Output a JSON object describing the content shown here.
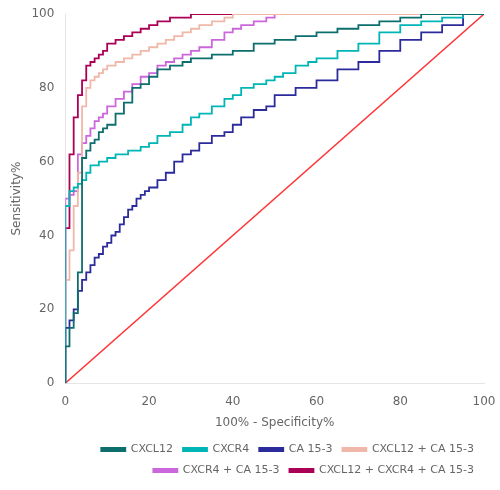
{
  "chart_data": {
    "type": "line",
    "xlabel": "100% - Specificity%",
    "ylabel": "Sensitivity%",
    "xlim": [
      0,
      100
    ],
    "ylim": [
      0,
      100
    ],
    "xticks": [
      0,
      20,
      40,
      60,
      80,
      100
    ],
    "yticks": [
      0,
      20,
      40,
      60,
      80,
      100
    ],
    "grid": false,
    "legend": "lower right",
    "series": [
      {
        "color": "#FF3333",
        "x": [
          0,
          100
        ],
        "values": [
          0,
          100
        ]
      },
      {
        "name": "CXCL12",
        "color": "#0D6E6E",
        "line_style": "steps-post",
        "x": [
          0,
          0,
          1,
          1,
          2,
          2,
          3,
          3,
          4,
          4,
          5,
          5,
          6,
          6,
          7,
          7,
          8,
          8,
          9,
          9,
          10,
          10,
          12,
          12,
          14,
          14,
          16,
          16,
          18,
          18,
          20,
          20,
          22,
          22,
          25,
          25,
          28,
          28,
          30,
          30,
          35,
          35,
          40,
          40,
          45,
          45,
          50,
          50,
          55,
          55,
          60,
          60,
          65,
          65,
          70,
          70,
          75,
          75,
          80,
          80,
          85,
          85,
          90,
          90,
          95,
          95,
          100
        ],
        "values": [
          0,
          10,
          10,
          15,
          15,
          19,
          19,
          30,
          30,
          61,
          61,
          63,
          63,
          65,
          65,
          66,
          66,
          68,
          68,
          69,
          69,
          70,
          70,
          73,
          73,
          76,
          76,
          80,
          80,
          81,
          81,
          83,
          83,
          85,
          85,
          86,
          86,
          87,
          87,
          88,
          88,
          89,
          89,
          90,
          90,
          92,
          92,
          93,
          93,
          94,
          94,
          95,
          95,
          96,
          96,
          97,
          97,
          98,
          98,
          99,
          99,
          100,
          100,
          100,
          100,
          100,
          100
        ]
      },
      {
        "name": "CXCR4",
        "color": "#00B5B5",
        "line_style": "steps-post",
        "x": [
          0,
          0,
          1,
          1,
          2,
          2,
          3,
          3,
          4,
          4,
          5,
          5,
          6,
          6,
          8,
          8,
          10,
          10,
          12,
          12,
          15,
          15,
          18,
          18,
          20,
          20,
          22,
          22,
          25,
          25,
          28,
          28,
          30,
          30,
          32,
          32,
          35,
          35,
          38,
          38,
          40,
          40,
          42,
          42,
          45,
          45,
          48,
          48,
          50,
          50,
          52,
          52,
          55,
          55,
          58,
          58,
          60,
          60,
          65,
          65,
          70,
          70,
          75,
          75,
          80,
          80,
          85,
          85,
          90,
          90,
          95,
          95,
          100
        ],
        "values": [
          0,
          48,
          48,
          52,
          52,
          53,
          53,
          54,
          54,
          55,
          55,
          57,
          57,
          59,
          59,
          60,
          60,
          61,
          61,
          62,
          62,
          63,
          63,
          64,
          64,
          65,
          65,
          67,
          67,
          68,
          68,
          70,
          70,
          72,
          72,
          73,
          73,
          75,
          75,
          77,
          77,
          78,
          78,
          80,
          80,
          81,
          81,
          82,
          82,
          83,
          83,
          84,
          84,
          86,
          86,
          87,
          87,
          88,
          88,
          90,
          90,
          92,
          92,
          95,
          95,
          97,
          97,
          98,
          98,
          99,
          99,
          100,
          100
        ]
      },
      {
        "name": "CA 15-3",
        "color": "#2B2B9B",
        "line_style": "steps-post",
        "x": [
          0,
          0,
          1,
          1,
          2,
          2,
          3,
          3,
          4,
          4,
          5,
          5,
          6,
          6,
          7,
          7,
          8,
          8,
          9,
          9,
          10,
          10,
          11,
          11,
          12,
          12,
          13,
          13,
          14,
          14,
          15,
          15,
          16,
          16,
          17,
          17,
          18,
          18,
          19,
          19,
          20,
          20,
          22,
          22,
          24,
          24,
          26,
          26,
          28,
          28,
          30,
          30,
          32,
          32,
          35,
          35,
          38,
          38,
          40,
          40,
          42,
          42,
          45,
          45,
          48,
          48,
          50,
          50,
          55,
          55,
          60,
          60,
          65,
          65,
          70,
          70,
          75,
          75,
          80,
          80,
          85,
          85,
          90,
          90,
          95,
          95,
          100
        ],
        "values": [
          0,
          15,
          15,
          17,
          17,
          20,
          20,
          25,
          25,
          28,
          28,
          30,
          30,
          32,
          32,
          34,
          34,
          35,
          35,
          37,
          37,
          38,
          38,
          40,
          40,
          41,
          41,
          43,
          43,
          45,
          45,
          47,
          47,
          48,
          48,
          50,
          50,
          51,
          51,
          52,
          52,
          53,
          53,
          55,
          55,
          57,
          57,
          60,
          60,
          62,
          62,
          63,
          63,
          65,
          65,
          67,
          67,
          68,
          68,
          70,
          70,
          72,
          72,
          74,
          74,
          75,
          75,
          78,
          78,
          80,
          80,
          82,
          82,
          85,
          85,
          87,
          87,
          90,
          90,
          93,
          93,
          95,
          95,
          97,
          97,
          100,
          100
        ]
      },
      {
        "name": "CXCL12 + CA 15-3",
        "color": "#F0B8A8",
        "line_style": "steps-post",
        "x": [
          0,
          0,
          1,
          1,
          2,
          2,
          3,
          3,
          4,
          4,
          5,
          5,
          6,
          6,
          7,
          7,
          8,
          8,
          9,
          9,
          10,
          10,
          12,
          12,
          14,
          14,
          16,
          16,
          18,
          18,
          20,
          20,
          22,
          22,
          24,
          24,
          26,
          26,
          28,
          28,
          30,
          30,
          32,
          32,
          35,
          35,
          38,
          38,
          40,
          40,
          45,
          45,
          50,
          50,
          55,
          55,
          60,
          60,
          65,
          65,
          70,
          70,
          75,
          75,
          80,
          80,
          85,
          85,
          90,
          90,
          95,
          95,
          100
        ],
        "values": [
          0,
          28,
          28,
          36,
          36,
          48,
          48,
          57,
          57,
          75,
          75,
          80,
          80,
          82,
          82,
          83,
          83,
          84,
          84,
          85,
          85,
          86,
          86,
          87,
          87,
          88,
          88,
          89,
          89,
          90,
          90,
          91,
          91,
          92,
          92,
          93,
          93,
          94,
          94,
          95,
          95,
          96,
          96,
          97,
          97,
          98,
          98,
          99,
          99,
          100,
          100,
          100,
          100,
          100,
          100,
          100,
          100,
          100,
          100,
          100,
          100,
          100,
          100,
          100,
          100,
          100,
          100,
          100,
          100,
          100,
          100,
          100,
          100
        ]
      },
      {
        "name": "CXCR4 + CA 15-3",
        "color": "#CC66DD",
        "line_style": "steps-post",
        "x": [
          0,
          0,
          1,
          1,
          2,
          2,
          3,
          3,
          4,
          4,
          5,
          5,
          6,
          6,
          7,
          7,
          8,
          8,
          9,
          9,
          10,
          10,
          12,
          12,
          14,
          14,
          16,
          16,
          18,
          18,
          20,
          20,
          22,
          22,
          24,
          24,
          26,
          26,
          28,
          28,
          30,
          30,
          32,
          32,
          35,
          35,
          38,
          38,
          40,
          40,
          42,
          42,
          45,
          45,
          48,
          48,
          50,
          50,
          55,
          55,
          60,
          60,
          65,
          65,
          70,
          70,
          75,
          75,
          80,
          80,
          85,
          85,
          90,
          90,
          95,
          95,
          100
        ],
        "values": [
          0,
          50,
          50,
          51,
          51,
          52,
          52,
          62,
          62,
          65,
          65,
          67,
          67,
          69,
          69,
          71,
          71,
          72,
          72,
          73,
          73,
          75,
          75,
          77,
          77,
          79,
          79,
          81,
          81,
          83,
          83,
          84,
          84,
          86,
          86,
          87,
          87,
          88,
          88,
          89,
          89,
          90,
          90,
          91,
          91,
          93,
          93,
          95,
          95,
          96,
          96,
          97,
          97,
          98,
          98,
          99,
          99,
          100,
          100,
          100,
          100,
          100,
          100,
          100,
          100,
          100,
          100,
          100,
          100,
          100,
          100,
          100,
          100,
          100,
          100,
          100,
          100
        ]
      },
      {
        "name": "CXCL12 + CXCR4 + CA 15-3",
        "color": "#AA0055",
        "line_style": "steps-post",
        "x": [
          0,
          0,
          1,
          1,
          2,
          2,
          3,
          3,
          4,
          4,
          5,
          5,
          6,
          6,
          7,
          7,
          8,
          8,
          9,
          9,
          10,
          10,
          12,
          12,
          14,
          14,
          16,
          16,
          18,
          18,
          20,
          20,
          22,
          22,
          25,
          25,
          30,
          30,
          35,
          35,
          40,
          40,
          45,
          45,
          50,
          50,
          55,
          55,
          60,
          60,
          65,
          65,
          70,
          70,
          75,
          75,
          80,
          80,
          85,
          85,
          90,
          90,
          95,
          95,
          100
        ],
        "values": [
          0,
          42,
          42,
          62,
          62,
          72,
          72,
          78,
          78,
          82,
          82,
          86,
          86,
          87,
          87,
          88,
          88,
          89,
          89,
          90,
          90,
          92,
          92,
          93,
          93,
          94,
          94,
          95,
          95,
          96,
          96,
          97,
          97,
          98,
          98,
          99,
          99,
          100,
          100,
          100,
          100,
          100,
          100,
          100,
          100,
          100,
          100,
          100,
          100,
          100,
          100,
          100,
          100,
          100,
          100,
          100,
          100,
          100,
          100,
          100,
          100,
          100,
          100,
          100,
          100
        ]
      }
    ]
  }
}
